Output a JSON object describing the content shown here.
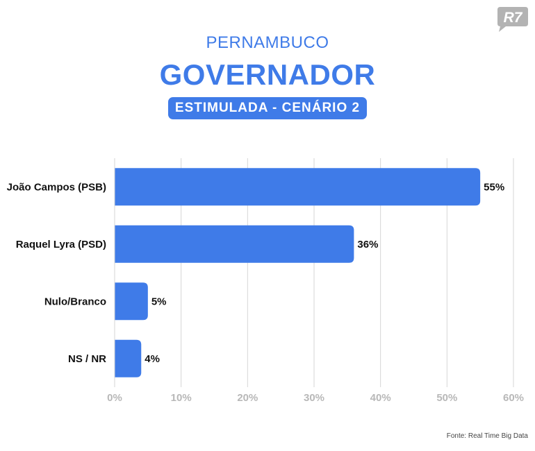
{
  "header": {
    "supertitle": "PERNAMBUCO",
    "title": "GOVERNADOR",
    "subtitle_pill": "ESTIMULADA - CENÁRIO 2"
  },
  "logo": {
    "text": "R7",
    "icon": "r7-logo-icon",
    "color": "#b3b3b3"
  },
  "source": "Fonte: Real Time Big Data",
  "colors": {
    "accent": "#3f7be8",
    "bar": "#3f7be8",
    "grid": "#d6d6d6",
    "tick": "#b8b8b8"
  },
  "chart_data": {
    "type": "bar",
    "orientation": "horizontal",
    "categories": [
      "João Campos (PSB)",
      "Raquel Lyra (PSD)",
      "Nulo/Branco",
      "NS / NR"
    ],
    "values": [
      55,
      36,
      5,
      4
    ],
    "value_labels": [
      "55%",
      "36%",
      "5%",
      "4%"
    ],
    "xlim": [
      0,
      60
    ],
    "xticks": [
      0,
      10,
      20,
      30,
      40,
      50,
      60
    ],
    "xtick_labels": [
      "0%",
      "10%",
      "20%",
      "30%",
      "40%",
      "50%",
      "60%"
    ],
    "grid": true,
    "legend": "none"
  }
}
